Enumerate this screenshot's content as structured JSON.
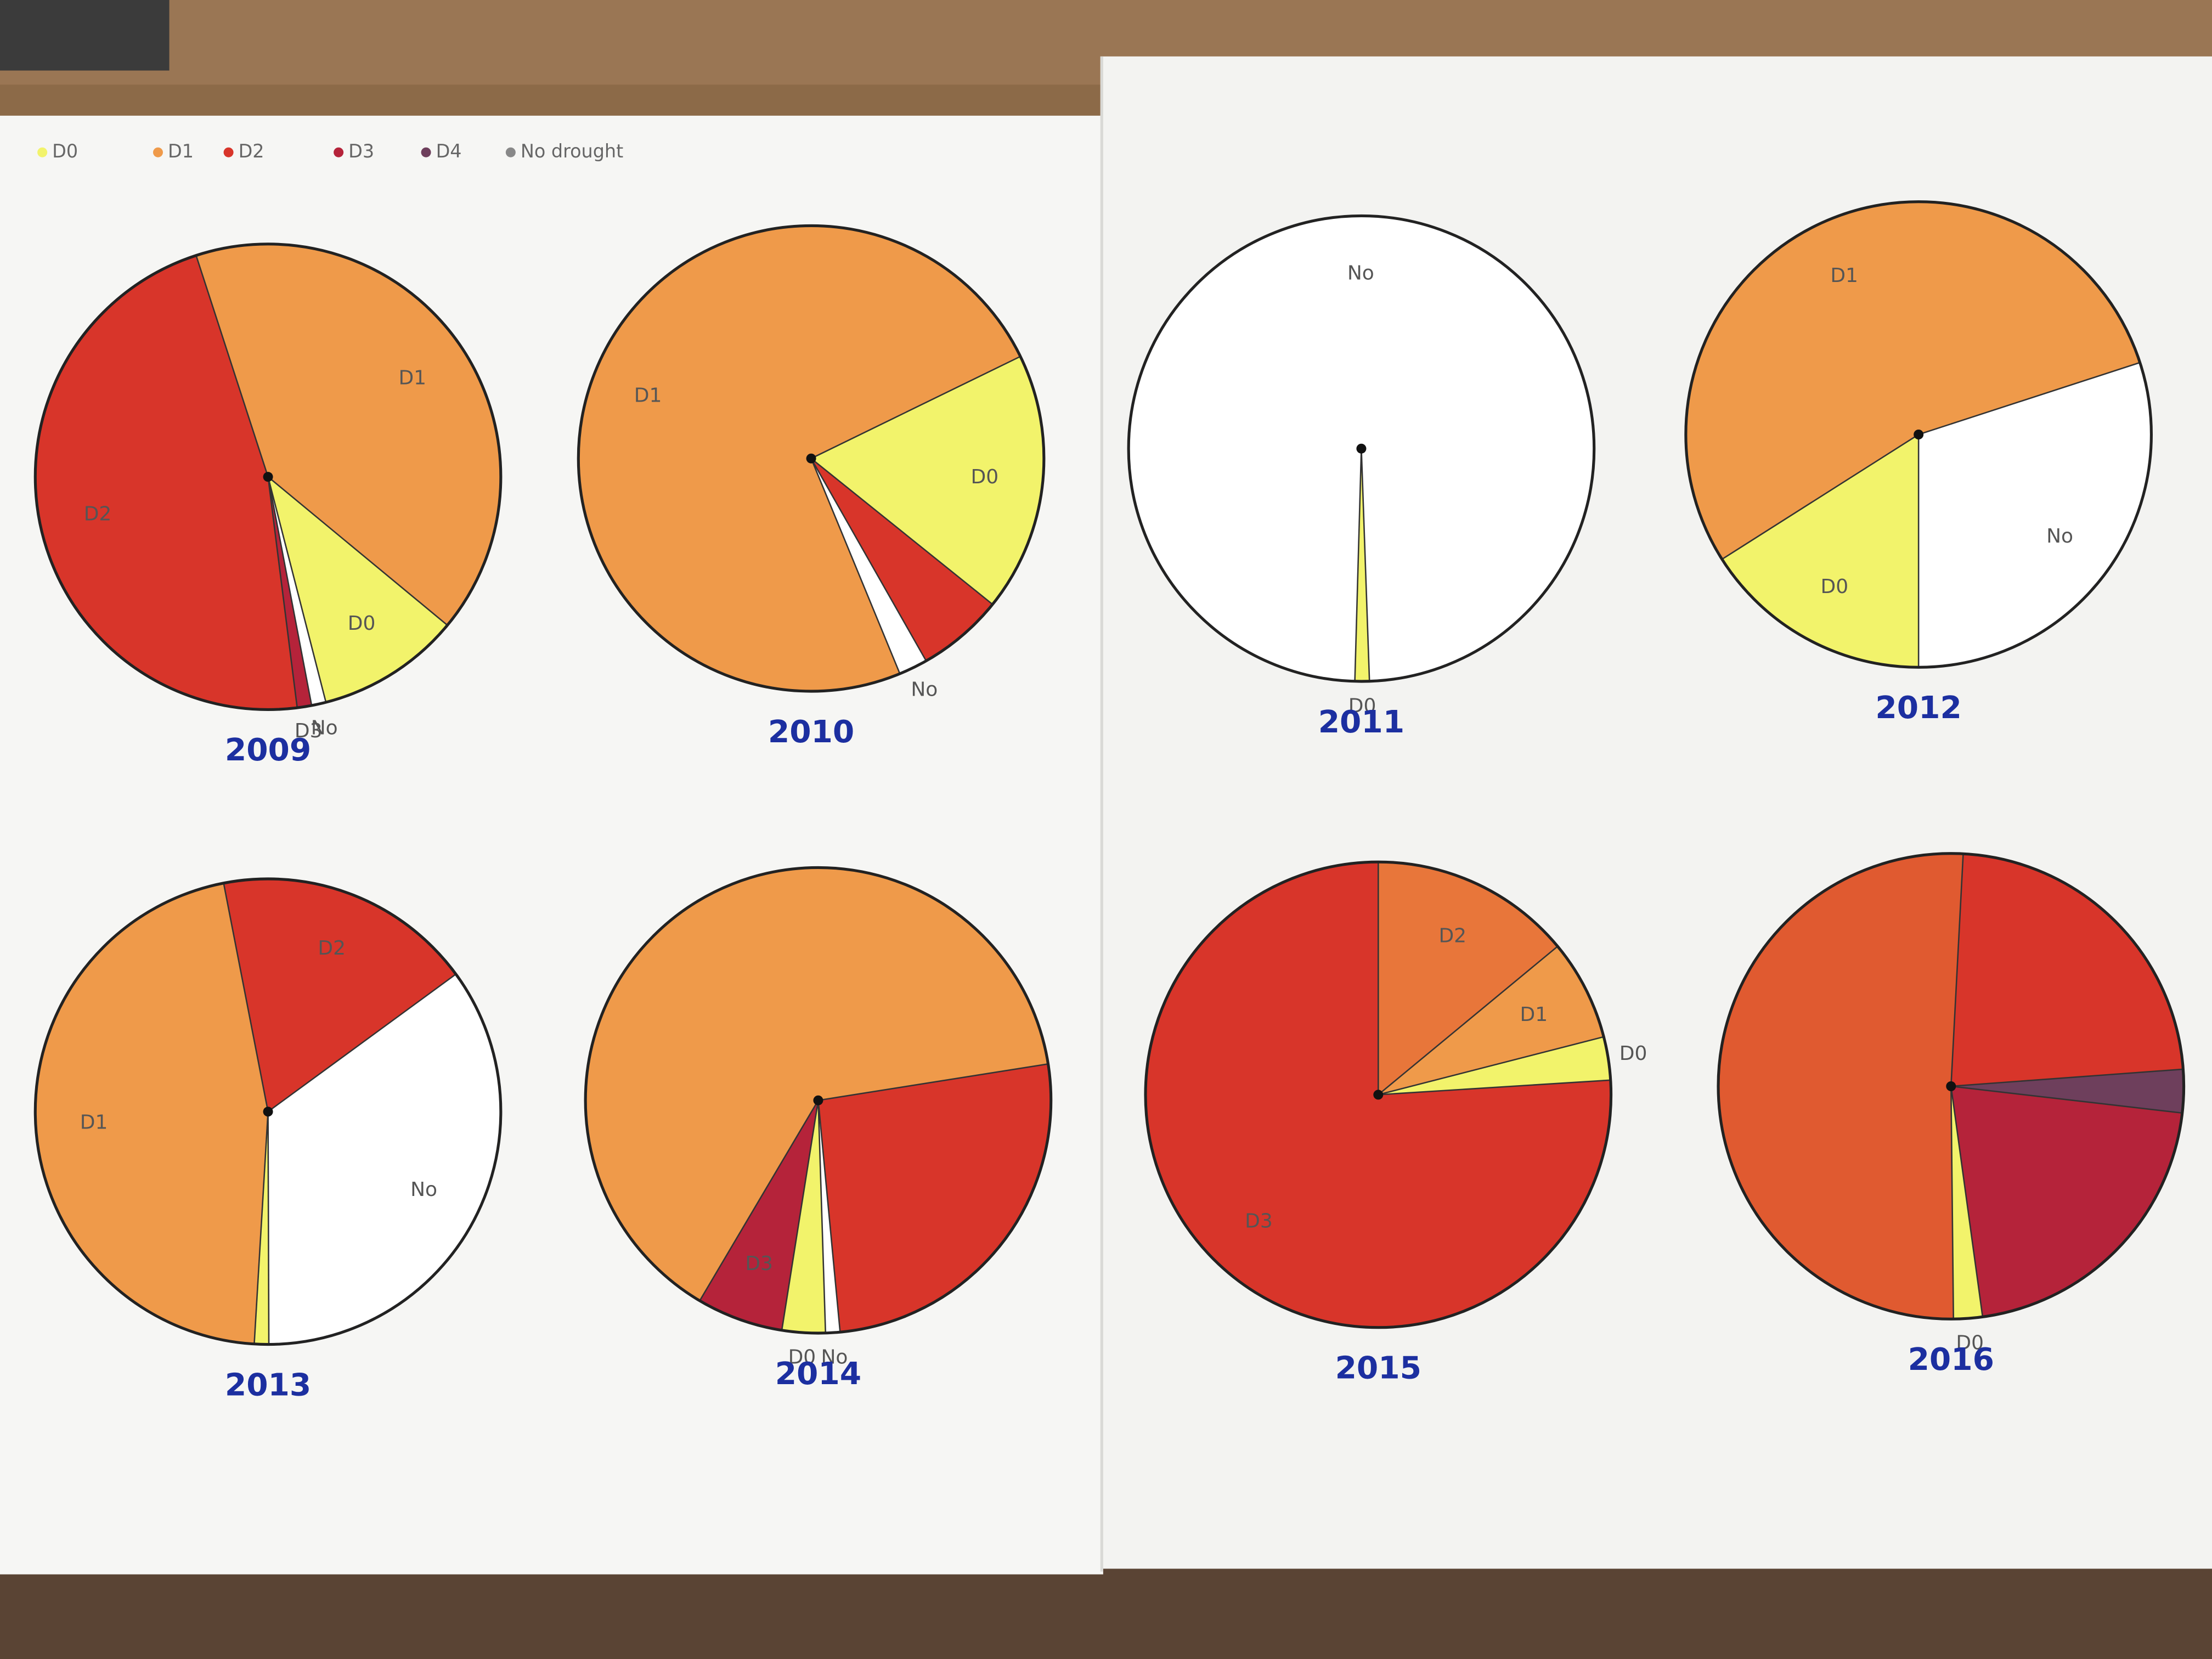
{
  "legend": [
    {
      "name": "D0",
      "color": "#f2f36b"
    },
    {
      "name": "D1",
      "color": "#ef9a4a"
    },
    {
      "name": "D2",
      "color": "#d8352a"
    },
    {
      "name": "D3",
      "color": "#b5233a"
    },
    {
      "name": "D4",
      "color": "#6e3f5c"
    },
    {
      "name": "No drought",
      "color": "#ffffff"
    }
  ],
  "chart_data": [
    {
      "type": "pie",
      "title": "2009",
      "categories": [
        "D1",
        "D0",
        "No",
        "D3",
        "D2"
      ],
      "values": [
        41,
        10,
        1,
        1,
        47
      ],
      "colors": [
        "#ef9a4a",
        "#f2f36b",
        "#ffffff",
        "#b5233a",
        "#d8352a"
      ]
    },
    {
      "type": "pie",
      "title": "2010",
      "categories": [
        "D0",
        null,
        "No",
        "D1"
      ],
      "values": [
        18,
        6,
        2,
        74
      ],
      "colors": [
        "#f2f36b",
        "#d8352a",
        "#ffffff",
        "#ef9a4a"
      ]
    },
    {
      "type": "pie",
      "title": "2011",
      "categories": [
        "D0",
        "No"
      ],
      "values": [
        1,
        99
      ],
      "colors": [
        "#f2f36b",
        "#ffffff"
      ]
    },
    {
      "type": "pie",
      "title": "2012",
      "categories": [
        "No",
        "D0",
        "D1"
      ],
      "values": [
        30,
        16,
        54
      ],
      "colors": [
        "#ffffff",
        "#f2f36b",
        "#ef9a4a"
      ]
    },
    {
      "type": "pie",
      "title": "2013",
      "categories": [
        "D2",
        "No",
        null,
        "D1"
      ],
      "values": [
        18,
        35,
        1,
        46
      ],
      "colors": [
        "#d8352a",
        "#ffffff",
        "#f2f36b",
        "#ef9a4a"
      ]
    },
    {
      "type": "pie",
      "title": "2014",
      "categories": [
        null,
        "No",
        "D0",
        "D3",
        null
      ],
      "values": [
        26,
        1,
        3,
        6,
        64
      ],
      "colors": [
        "#d8352a",
        "#ffffff",
        "#f2f36b",
        "#b5233a",
        "#ef9a4a"
      ]
    },
    {
      "type": "pie",
      "title": "2015",
      "categories": [
        "D2",
        "D1",
        "D0",
        "D3"
      ],
      "values": [
        14,
        7,
        3,
        76
      ],
      "colors": [
        "#e8763a",
        "#ef9a4a",
        "#f2f36b",
        "#d8352a"
      ]
    },
    {
      "type": "pie",
      "title": "2016",
      "categories": [
        null,
        null,
        null,
        "D0",
        null
      ],
      "values": [
        23,
        3,
        21,
        2,
        51
      ],
      "colors": [
        "#d8352a",
        "#6e3f5c",
        "#b5233a",
        "#f2f36b",
        "#e05a30"
      ]
    }
  ]
}
